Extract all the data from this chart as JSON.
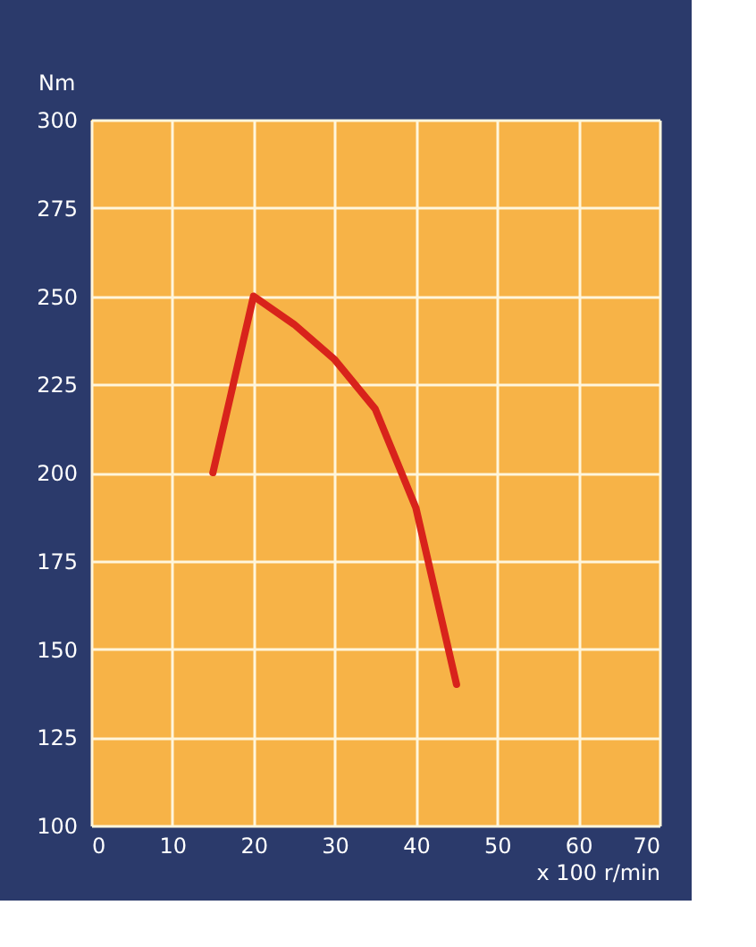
{
  "chart_data": {
    "type": "line",
    "xlabel": "x 100   r/min",
    "ylabel": "Nm",
    "x": [
      15,
      20,
      25,
      30,
      35,
      40,
      45
    ],
    "series": [
      {
        "color": "#d8231b",
        "values": [
          200,
          250,
          242,
          232,
          218,
          190,
          140
        ]
      }
    ],
    "xlim": [
      0,
      70
    ],
    "xticks": [
      0,
      10,
      20,
      30,
      40,
      50,
      60,
      70
    ],
    "ylim": [
      100,
      300
    ],
    "yticks": [
      100,
      125,
      150,
      175,
      200,
      225,
      250,
      275,
      300
    ],
    "grid": true,
    "marker": "none",
    "line_style": "solid"
  }
}
